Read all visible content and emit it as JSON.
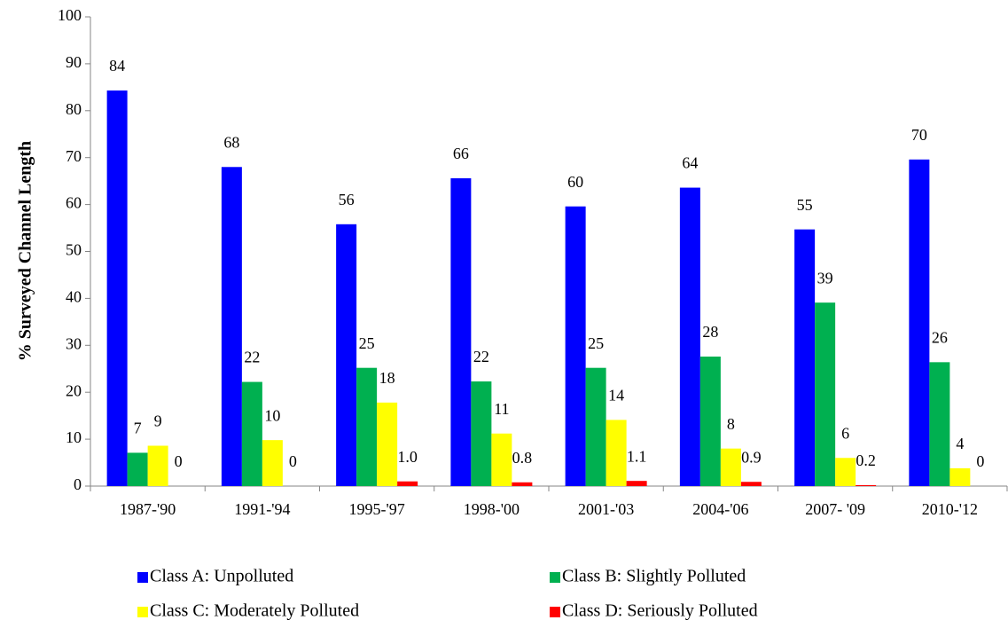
{
  "chart_data": {
    "type": "bar",
    "y_label": "% Surveyed Channel Length",
    "categories": [
      "1987-'90",
      "1991-'94",
      "1995-'97",
      "1998-'00",
      "2001-'03",
      "2004-'06",
      "2007- '09",
      "2010-'12"
    ],
    "series": [
      {
        "name": "Class A: Unpolluted",
        "color": "#0000ff",
        "values": [
          84.3,
          68,
          55.8,
          65.6,
          59.6,
          63.6,
          54.7,
          69.6
        ],
        "value_labels": [
          "84",
          "68",
          "56",
          "66",
          "60",
          "64",
          "55",
          "70"
        ]
      },
      {
        "name": "Class B: Slightly Polluted",
        "color": "#00b050",
        "values": [
          7.1,
          22.2,
          25.2,
          22.3,
          25.2,
          27.6,
          39.1,
          26.4
        ],
        "value_labels": [
          "7",
          "22",
          "25",
          "22",
          "25",
          "28",
          "39",
          "26"
        ]
      },
      {
        "name": "Class C: Moderately Polluted",
        "color": "#ffff00",
        "values": [
          8.6,
          9.8,
          17.8,
          11.2,
          14.1,
          8.0,
          6.0,
          3.8
        ],
        "value_labels": [
          "9",
          "10",
          "18",
          "11",
          "14",
          "8",
          "6",
          "4"
        ]
      },
      {
        "name": "Class D: Seriously Polluted",
        "color": "#ff0000",
        "values": [
          0,
          0,
          1.0,
          0.8,
          1.1,
          0.9,
          0.2,
          0
        ],
        "value_labels": [
          "0",
          "0",
          "1.0",
          "0.8",
          "1.1",
          "0.9",
          "0.2",
          "0"
        ]
      }
    ],
    "ylim": [
      0,
      100
    ],
    "yticks": [
      0,
      10,
      20,
      30,
      40,
      50,
      60,
      70,
      80,
      90,
      100
    ]
  }
}
